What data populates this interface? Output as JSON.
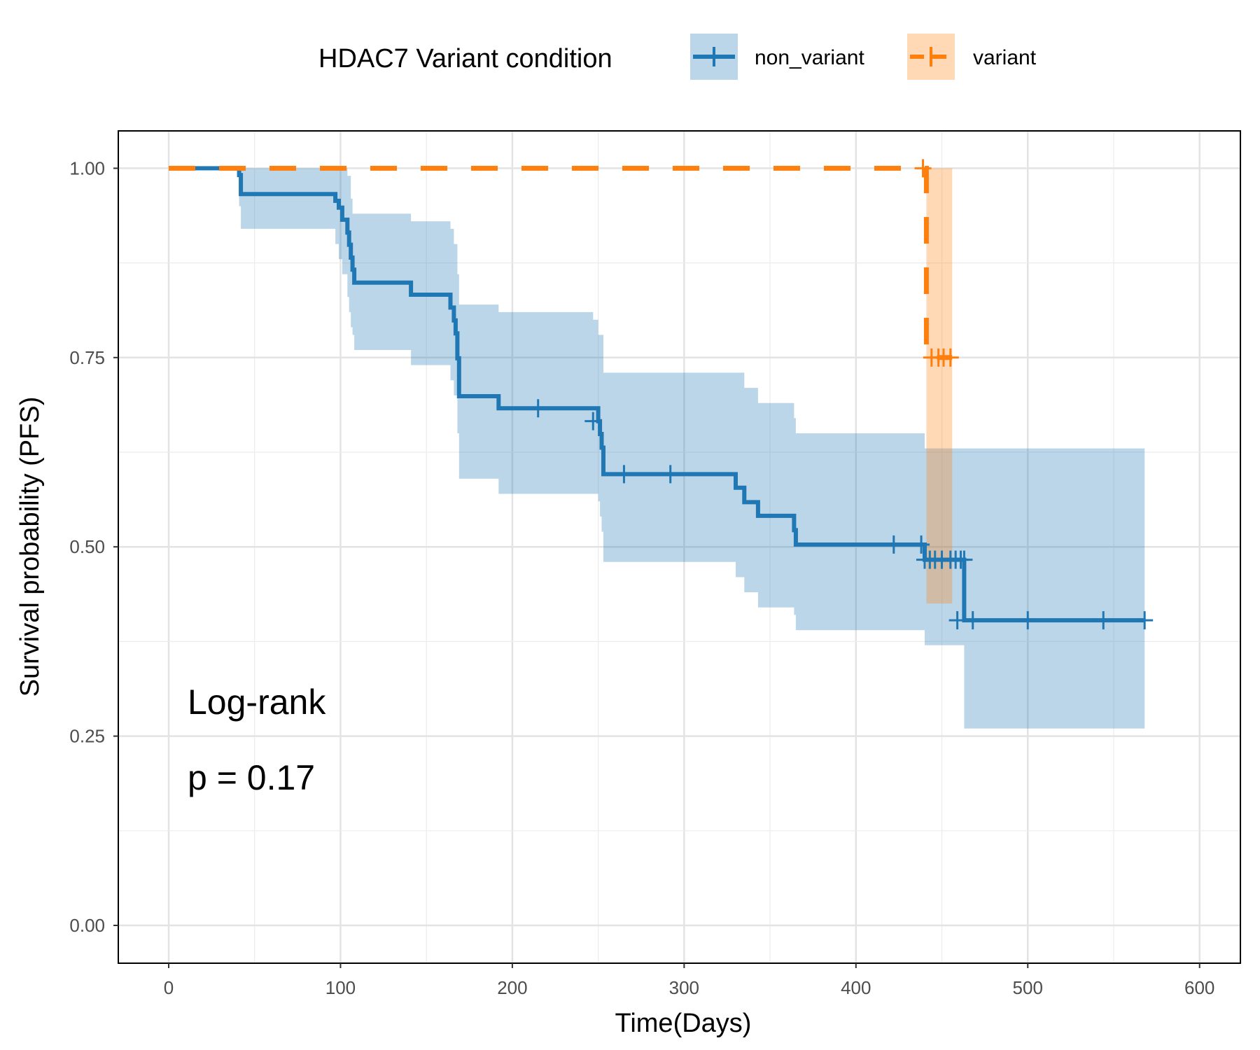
{
  "chart_data": {
    "type": "line",
    "subtype": "kaplan-meier survival curve with confidence bands",
    "xlabel": "Time(Days)",
    "ylabel": "Survival probability (PFS)",
    "xlim": [
      -30,
      625
    ],
    "ylim": [
      -0.05,
      1.05
    ],
    "x_ticks": [
      0,
      100,
      200,
      300,
      400,
      500,
      600
    ],
    "x_tick_labels": [
      "0",
      "100",
      "200",
      "300",
      "400",
      "500",
      "600"
    ],
    "y_ticks": [
      0,
      0.25,
      0.5,
      0.75,
      1.0
    ],
    "y_tick_labels": [
      "0.00",
      "0.25",
      "0.50",
      "0.75",
      "1.00"
    ],
    "grid": true,
    "legend": {
      "title": "HDAC7 Variant condition",
      "position": "top",
      "entries": [
        "non_variant",
        "variant"
      ]
    },
    "annotations": [
      {
        "text": "Log-rank"
      },
      {
        "text": "p = 0.17"
      }
    ],
    "colors": {
      "non_variant": "#1f77b4",
      "variant": "#ff7f0e",
      "grid": "#e6e6e6",
      "axis_text": "#4d4d4d"
    },
    "series": [
      {
        "name": "non_variant",
        "line_style": "solid",
        "steps": [
          [
            0,
            1.0
          ],
          [
            41,
            0.991
          ],
          [
            42,
            0.966
          ],
          [
            97,
            0.957
          ],
          [
            99,
            0.948
          ],
          [
            101,
            0.932
          ],
          [
            104,
            0.915
          ],
          [
            105,
            0.899
          ],
          [
            106,
            0.882
          ],
          [
            107,
            0.866
          ],
          [
            108,
            0.849
          ],
          [
            141,
            0.833
          ],
          [
            164,
            0.816
          ],
          [
            166,
            0.799
          ],
          [
            167,
            0.782
          ],
          [
            168,
            0.749
          ],
          [
            169,
            0.699
          ],
          [
            192,
            0.683
          ],
          [
            250,
            0.666
          ],
          [
            251,
            0.649
          ],
          [
            252,
            0.631
          ],
          [
            253,
            0.596
          ],
          [
            330,
            0.578
          ],
          [
            335,
            0.559
          ],
          [
            343,
            0.541
          ],
          [
            364,
            0.522
          ],
          [
            365,
            0.503
          ],
          [
            440,
            0.483
          ],
          [
            463,
            0.403
          ],
          [
            568,
            0.403
          ]
        ],
        "ci_upper": [
          [
            0,
            1.0
          ],
          [
            42,
            1.0
          ],
          [
            104,
            0.99
          ],
          [
            106,
            0.96
          ],
          [
            107,
            0.94
          ],
          [
            141,
            0.93
          ],
          [
            164,
            0.92
          ],
          [
            166,
            0.9
          ],
          [
            168,
            0.86
          ],
          [
            169,
            0.82
          ],
          [
            192,
            0.81
          ],
          [
            247,
            0.8
          ],
          [
            250,
            0.78
          ],
          [
            253,
            0.73
          ],
          [
            330,
            0.73
          ],
          [
            335,
            0.71
          ],
          [
            343,
            0.69
          ],
          [
            364,
            0.67
          ],
          [
            365,
            0.65
          ],
          [
            440,
            0.63
          ],
          [
            568,
            0.63
          ]
        ],
        "ci_lower": [
          [
            0,
            1.0
          ],
          [
            41,
            0.95
          ],
          [
            42,
            0.92
          ],
          [
            97,
            0.9
          ],
          [
            99,
            0.88
          ],
          [
            101,
            0.86
          ],
          [
            104,
            0.83
          ],
          [
            105,
            0.81
          ],
          [
            106,
            0.79
          ],
          [
            107,
            0.78
          ],
          [
            108,
            0.76
          ],
          [
            141,
            0.74
          ],
          [
            164,
            0.72
          ],
          [
            166,
            0.7
          ],
          [
            168,
            0.65
          ],
          [
            169,
            0.59
          ],
          [
            192,
            0.57
          ],
          [
            250,
            0.56
          ],
          [
            251,
            0.54
          ],
          [
            252,
            0.52
          ],
          [
            253,
            0.48
          ],
          [
            330,
            0.46
          ],
          [
            335,
            0.44
          ],
          [
            343,
            0.42
          ],
          [
            364,
            0.41
          ],
          [
            365,
            0.39
          ],
          [
            440,
            0.37
          ],
          [
            463,
            0.26
          ],
          [
            568,
            0.26
          ]
        ],
        "censor_times": [
          [
            215,
            0.683
          ],
          [
            247,
            0.666
          ],
          [
            265,
            0.596
          ],
          [
            292,
            0.596
          ],
          [
            422,
            0.503
          ],
          [
            438,
            0.503
          ],
          [
            440,
            0.483
          ],
          [
            443,
            0.483
          ],
          [
            446,
            0.483
          ],
          [
            450,
            0.483
          ],
          [
            455,
            0.483
          ],
          [
            458,
            0.483
          ],
          [
            461,
            0.483
          ],
          [
            463,
            0.483
          ],
          [
            459,
            0.403
          ],
          [
            468,
            0.403
          ],
          [
            500,
            0.403
          ],
          [
            544,
            0.403
          ],
          [
            568,
            0.403
          ]
        ]
      },
      {
        "name": "variant",
        "line_style": "dashed",
        "steps": [
          [
            0,
            1.0
          ],
          [
            441,
            0.75
          ],
          [
            456,
            0.75
          ]
        ],
        "ci_upper": [
          [
            441,
            1.0
          ],
          [
            456,
            1.0
          ]
        ],
        "ci_lower": [
          [
            441,
            0.425
          ],
          [
            456,
            0.425
          ]
        ],
        "censor_times": [
          [
            439,
            1.0
          ],
          [
            444,
            0.75
          ],
          [
            448,
            0.75
          ],
          [
            451,
            0.75
          ],
          [
            455,
            0.75
          ]
        ]
      }
    ]
  }
}
